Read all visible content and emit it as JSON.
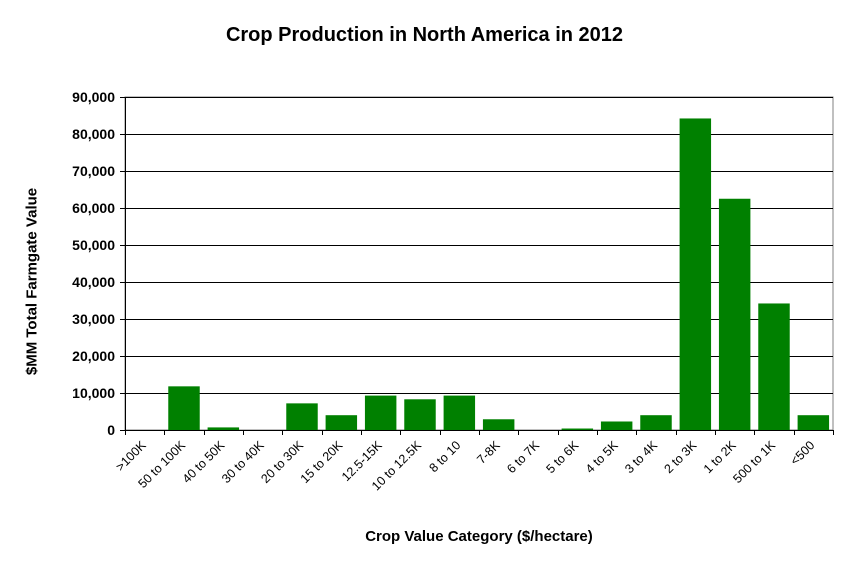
{
  "chart_data": {
    "type": "bar",
    "title": "Crop Production in North America in 2012",
    "xlabel": "Crop Value Category ($/hectare)",
    "ylabel": "$MM Total Farmgate Value",
    "categories": [
      ">100K",
      "50 to 100K",
      "40 to 50K",
      "30 to 40K",
      "20 to 30K",
      "15 to 20K",
      "12.5-15K",
      "10 to 12.5K",
      "8 to 10",
      "7-8K",
      "6 to 7K",
      "5 to 6K",
      "4 to 5K",
      "3 to 4K",
      "2 to 3K",
      "1 to 2K",
      "500 to 1K",
      "<500"
    ],
    "values": [
      0,
      11800,
      700,
      0,
      7200,
      4000,
      9300,
      8300,
      9300,
      2900,
      0,
      400,
      2300,
      4000,
      84200,
      62500,
      34200,
      4000
    ],
    "ylim": [
      0,
      90000
    ],
    "yticks": [
      0,
      10000,
      20000,
      30000,
      40000,
      50000,
      60000,
      70000,
      80000,
      90000
    ],
    "ytick_labels": [
      "0",
      "10,000",
      "20,000",
      "30,000",
      "40,000",
      "50,000",
      "60,000",
      "70,000",
      "80,000",
      "90,000"
    ],
    "grid": true,
    "legend": "none",
    "bar_color": "#008000"
  }
}
